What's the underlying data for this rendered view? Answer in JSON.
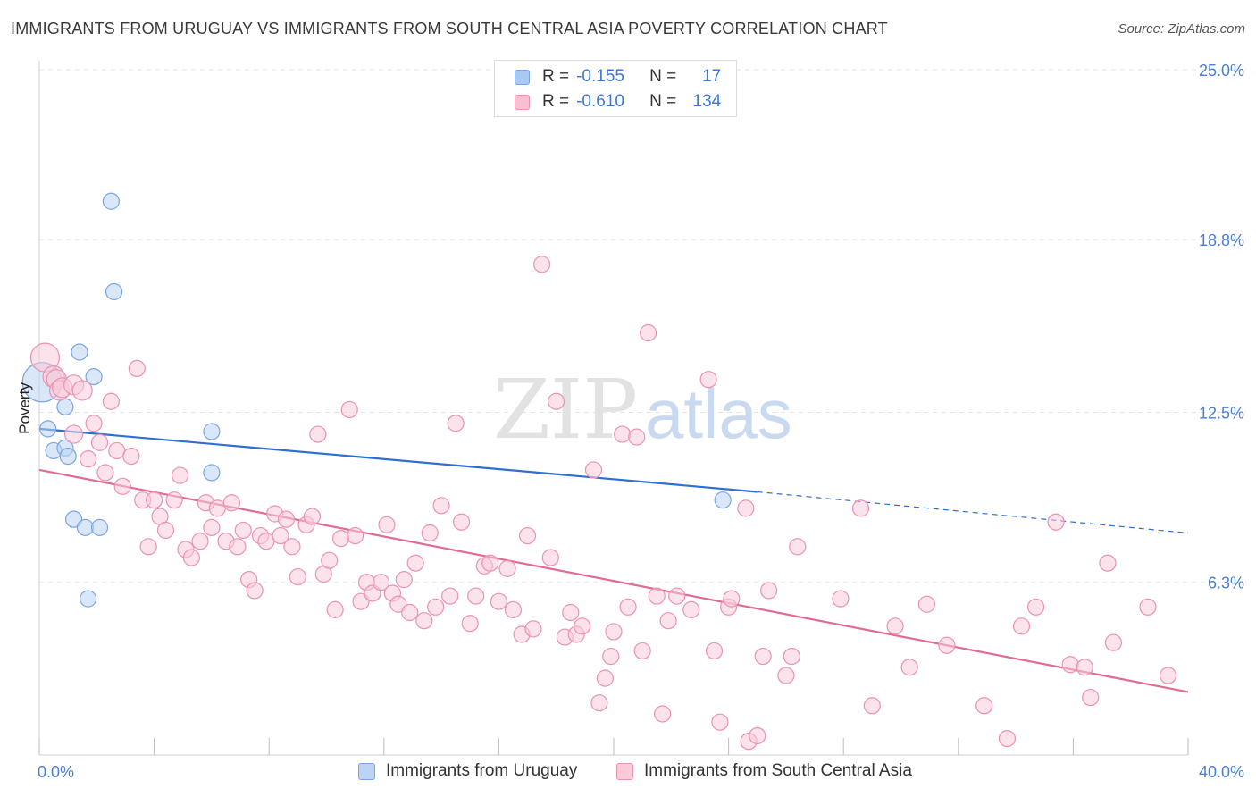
{
  "header": {
    "title": "IMMIGRANTS FROM URUGUAY VS IMMIGRANTS FROM SOUTH CENTRAL ASIA POVERTY CORRELATION CHART",
    "source": "Source: ZipAtlas.com"
  },
  "watermark": {
    "zip": "ZIP",
    "atlas": "atlas"
  },
  "legend": {
    "rows": [
      {
        "r_label": "R =",
        "r_value": "-0.155",
        "n_label": "N =",
        "n_value": "17",
        "color": "#a9c8f2",
        "border": "#7aa6e0"
      },
      {
        "r_label": "R =",
        "r_value": "-0.610",
        "n_label": "N =",
        "n_value": "134",
        "color": "#f7bfd1",
        "border": "#eb92b0"
      }
    ]
  },
  "bottom_legend": {
    "items": [
      {
        "label": "Immigrants from Uruguay",
        "color": "#bcd4f4",
        "border": "#7aa6e0"
      },
      {
        "label": "Immigrants from South Central Asia",
        "color": "#f9cbd9",
        "border": "#eb92b0"
      }
    ]
  },
  "chart_data": {
    "type": "scatter",
    "xlabel": "",
    "ylabel": "Poverty",
    "xlim": [
      0,
      40
    ],
    "ylim": [
      0,
      25
    ],
    "x_tick_labels": [
      "0.0%",
      "40.0%"
    ],
    "y_ticks": [
      6.3,
      12.5,
      18.8,
      25.0
    ],
    "y_tick_labels": [
      "6.3%",
      "12.5%",
      "18.8%",
      "25.0%"
    ],
    "grid": true,
    "legend_position": "top-center",
    "series": [
      {
        "name": "Immigrants from Uruguay",
        "color": "#7aa6e0",
        "fill": "#bcd4f4",
        "trend": {
          "x": [
            0,
            25
          ],
          "y": [
            11.9,
            9.6
          ],
          "dashed_to": [
            40,
            8.1
          ],
          "color": "#2f6fcf"
        },
        "points": [
          [
            0.1,
            13.6,
            22
          ],
          [
            0.3,
            11.9,
            9
          ],
          [
            0.5,
            11.1,
            9
          ],
          [
            0.9,
            12.7,
            9
          ],
          [
            0.9,
            11.2,
            9
          ],
          [
            1.0,
            10.9,
            9
          ],
          [
            1.2,
            8.6,
            9
          ],
          [
            1.4,
            14.7,
            9
          ],
          [
            1.6,
            8.3,
            9
          ],
          [
            1.7,
            5.7,
            9
          ],
          [
            1.9,
            13.8,
            9
          ],
          [
            2.1,
            8.3,
            9
          ],
          [
            2.5,
            20.2,
            9
          ],
          [
            2.6,
            16.9,
            9
          ],
          [
            6.0,
            11.8,
            9
          ],
          [
            6.0,
            10.3,
            9
          ],
          [
            23.8,
            9.3,
            9
          ]
        ]
      },
      {
        "name": "Immigrants from South Central Asia",
        "color": "#eb92b0",
        "fill": "#f9cbd9",
        "trend": {
          "x": [
            0,
            40
          ],
          "y": [
            10.4,
            2.3
          ],
          "color": "#e06b96"
        },
        "points": [
          [
            0.2,
            14.5,
            16
          ],
          [
            0.5,
            13.8,
            12
          ],
          [
            0.6,
            13.7,
            11
          ],
          [
            0.7,
            13.3,
            11
          ],
          [
            0.8,
            13.4,
            11
          ],
          [
            1.2,
            13.5,
            11
          ],
          [
            1.5,
            13.3,
            11
          ],
          [
            1.2,
            11.7,
            10
          ],
          [
            1.7,
            10.8,
            9
          ],
          [
            1.9,
            12.1,
            9
          ],
          [
            2.1,
            11.4,
            9
          ],
          [
            2.3,
            10.3,
            9
          ],
          [
            2.5,
            12.9,
            9
          ],
          [
            2.7,
            11.1,
            9
          ],
          [
            2.9,
            9.8,
            9
          ],
          [
            3.2,
            10.9,
            9
          ],
          [
            3.4,
            14.1,
            9
          ],
          [
            3.6,
            9.3,
            9
          ],
          [
            3.8,
            7.6,
            9
          ],
          [
            4.0,
            9.3,
            9
          ],
          [
            4.2,
            8.7,
            9
          ],
          [
            4.4,
            8.2,
            9
          ],
          [
            4.7,
            9.3,
            9
          ],
          [
            4.9,
            10.2,
            9
          ],
          [
            5.1,
            7.5,
            9
          ],
          [
            5.3,
            7.2,
            9
          ],
          [
            5.6,
            7.8,
            9
          ],
          [
            5.8,
            9.2,
            9
          ],
          [
            6.0,
            8.3,
            9
          ],
          [
            6.2,
            9.0,
            9
          ],
          [
            6.5,
            7.8,
            9
          ],
          [
            6.7,
            9.2,
            9
          ],
          [
            6.9,
            7.6,
            9
          ],
          [
            7.1,
            8.2,
            9
          ],
          [
            7.3,
            6.4,
            9
          ],
          [
            7.5,
            6.0,
            9
          ],
          [
            7.7,
            8.0,
            9
          ],
          [
            7.9,
            7.8,
            9
          ],
          [
            8.2,
            8.8,
            9
          ],
          [
            8.4,
            8.0,
            9
          ],
          [
            8.6,
            8.6,
            9
          ],
          [
            8.8,
            7.6,
            9
          ],
          [
            9.0,
            6.5,
            9
          ],
          [
            9.3,
            8.4,
            9
          ],
          [
            9.5,
            8.7,
            9
          ],
          [
            9.7,
            11.7,
            9
          ],
          [
            9.9,
            6.6,
            9
          ],
          [
            10.1,
            7.1,
            9
          ],
          [
            10.3,
            5.3,
            9
          ],
          [
            10.5,
            7.9,
            9
          ],
          [
            10.8,
            12.6,
            9
          ],
          [
            11.0,
            8.0,
            9
          ],
          [
            11.2,
            5.6,
            9
          ],
          [
            11.4,
            6.3,
            9
          ],
          [
            11.6,
            5.9,
            9
          ],
          [
            11.9,
            6.3,
            9
          ],
          [
            12.1,
            8.4,
            9
          ],
          [
            12.3,
            5.9,
            9
          ],
          [
            12.5,
            5.5,
            9
          ],
          [
            12.7,
            6.4,
            9
          ],
          [
            12.9,
            5.2,
            9
          ],
          [
            13.1,
            7.0,
            9
          ],
          [
            13.4,
            4.9,
            9
          ],
          [
            13.6,
            8.1,
            9
          ],
          [
            13.8,
            5.4,
            9
          ],
          [
            14.0,
            9.1,
            9
          ],
          [
            14.3,
            5.8,
            9
          ],
          [
            14.5,
            12.1,
            9
          ],
          [
            14.7,
            8.5,
            9
          ],
          [
            15.0,
            4.8,
            9
          ],
          [
            15.2,
            5.8,
            9
          ],
          [
            15.5,
            6.9,
            9
          ],
          [
            15.7,
            7.0,
            9
          ],
          [
            16.0,
            5.6,
            9
          ],
          [
            16.3,
            6.8,
            9
          ],
          [
            16.5,
            5.3,
            9
          ],
          [
            16.8,
            4.4,
            9
          ],
          [
            17.0,
            8.0,
            9
          ],
          [
            17.2,
            4.6,
            9
          ],
          [
            17.5,
            17.9,
            9
          ],
          [
            17.8,
            7.2,
            9
          ],
          [
            18.0,
            12.9,
            9
          ],
          [
            18.3,
            4.3,
            9
          ],
          [
            18.5,
            5.2,
            9
          ],
          [
            18.7,
            4.4,
            9
          ],
          [
            18.9,
            4.7,
            9
          ],
          [
            19.3,
            10.4,
            9
          ],
          [
            19.5,
            1.9,
            9
          ],
          [
            19.7,
            2.8,
            9
          ],
          [
            19.9,
            3.6,
            9
          ],
          [
            20.0,
            4.5,
            9
          ],
          [
            20.3,
            11.7,
            9
          ],
          [
            20.5,
            5.4,
            9
          ],
          [
            20.8,
            11.6,
            9
          ],
          [
            21.0,
            3.8,
            9
          ],
          [
            21.2,
            15.4,
            9
          ],
          [
            21.5,
            5.8,
            9
          ],
          [
            21.7,
            1.5,
            9
          ],
          [
            21.9,
            4.9,
            9
          ],
          [
            22.2,
            5.8,
            9
          ],
          [
            22.7,
            5.3,
            9
          ],
          [
            23.3,
            13.7,
            9
          ],
          [
            23.5,
            3.8,
            9
          ],
          [
            23.7,
            1.2,
            9
          ],
          [
            24.0,
            5.4,
            9
          ],
          [
            24.1,
            5.7,
            9
          ],
          [
            24.6,
            9.0,
            9
          ],
          [
            24.7,
            0.5,
            9
          ],
          [
            25.0,
            0.7,
            9
          ],
          [
            25.2,
            3.6,
            9
          ],
          [
            25.4,
            6.0,
            9
          ],
          [
            26.0,
            2.9,
            9
          ],
          [
            26.2,
            3.6,
            9
          ],
          [
            26.4,
            7.6,
            9
          ],
          [
            27.9,
            5.7,
            9
          ],
          [
            28.6,
            9.0,
            9
          ],
          [
            29.0,
            1.8,
            9
          ],
          [
            29.8,
            4.7,
            9
          ],
          [
            30.3,
            3.2,
            9
          ],
          [
            30.9,
            5.5,
            9
          ],
          [
            31.6,
            4.0,
            9
          ],
          [
            32.9,
            1.8,
            9
          ],
          [
            33.7,
            0.6,
            9
          ],
          [
            34.2,
            4.7,
            9
          ],
          [
            34.7,
            5.4,
            9
          ],
          [
            35.4,
            8.5,
            9
          ],
          [
            35.9,
            3.3,
            9
          ],
          [
            36.4,
            3.2,
            9
          ],
          [
            36.6,
            2.1,
            9
          ],
          [
            37.2,
            7.0,
            9
          ],
          [
            37.4,
            4.1,
            9
          ],
          [
            38.6,
            5.4,
            9
          ],
          [
            39.3,
            2.9,
            9
          ]
        ]
      }
    ]
  }
}
